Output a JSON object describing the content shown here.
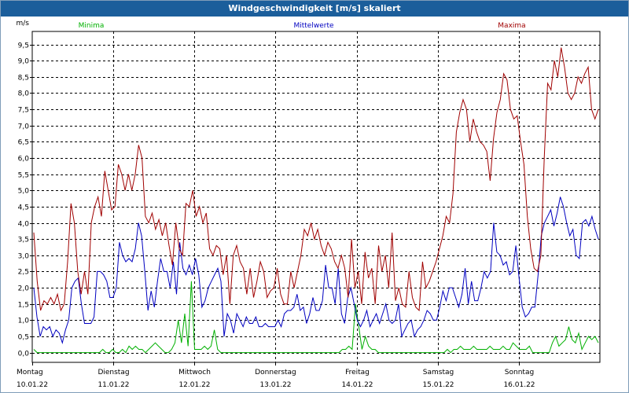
{
  "window": {
    "title": "Windgeschwindigkeit [m/s] skaliert"
  },
  "chart_data": {
    "type": "line",
    "title": "Windgeschwindigkeit [m/s] skaliert",
    "ylabel": "m/s",
    "xlabel": "",
    "ylim": [
      -0.3,
      9.9
    ],
    "xlim": [
      0,
      7
    ],
    "y_ticks": [
      "0,0",
      "0,5",
      "1,0",
      "1,5",
      "2,0",
      "2,5",
      "3,0",
      "3,5",
      "4,0",
      "4,5",
      "5,0",
      "5,5",
      "6,0",
      "6,5",
      "7,0",
      "7,5",
      "8,0",
      "8,5",
      "9,0",
      "9,5"
    ],
    "y_tick_values": [
      0,
      0.5,
      1,
      1.5,
      2,
      2.5,
      3,
      3.5,
      4,
      4.5,
      5,
      5.5,
      6,
      6.5,
      7,
      7.5,
      8,
      8.5,
      9,
      9.5
    ],
    "x_ticks": [
      {
        "day": "Montag",
        "date": "10.01.22"
      },
      {
        "day": "Dienstag",
        "date": "11.01.22"
      },
      {
        "day": "Mittwoch",
        "date": "12.01.22"
      },
      {
        "day": "Donnerstag",
        "date": "13.01.22"
      },
      {
        "day": "Freitag",
        "date": "14.01.22"
      },
      {
        "day": "Samstag",
        "date": "15.01.22"
      },
      {
        "day": "Sonntag",
        "date": "16.01.22"
      }
    ],
    "grid": true,
    "series": [
      {
        "name": "Minima",
        "color": "#00b000",
        "values": [
          0.1,
          0,
          0,
          0,
          0,
          0,
          0,
          0,
          0,
          0,
          0,
          0,
          0,
          0,
          0,
          0,
          0,
          0,
          0,
          0,
          0,
          0.1,
          0,
          0,
          0.1,
          0,
          0,
          0.1,
          0,
          0.2,
          0.1,
          0.2,
          0.1,
          0.1,
          0,
          0.1,
          0.2,
          0.3,
          0.2,
          0.1,
          0,
          0,
          0.1,
          0.3,
          1.0,
          0.3,
          1.2,
          0.2,
          2.2,
          0.1,
          0.1,
          0.1,
          0.2,
          0.1,
          0.2,
          0.7,
          0.1,
          0,
          0,
          0,
          0,
          0,
          0,
          0,
          0,
          0,
          0,
          0,
          0,
          0,
          0,
          0,
          0,
          0,
          0,
          0,
          0,
          0,
          0,
          0,
          0,
          0,
          0,
          0,
          0,
          0,
          0,
          0,
          0,
          0,
          0,
          0,
          0,
          0,
          0.1,
          0.1,
          0.2,
          0.1,
          1.5,
          0.8,
          0.1,
          0.5,
          0.2,
          0.1,
          0.1,
          0,
          0,
          0,
          0,
          0,
          0,
          0,
          0,
          0,
          0,
          0,
          0,
          0,
          0,
          0,
          0,
          0,
          0,
          0,
          0,
          0,
          0.1,
          0,
          0.1,
          0.1,
          0.2,
          0.1,
          0.1,
          0.1,
          0.2,
          0.1,
          0.1,
          0.1,
          0.1,
          0.2,
          0.1,
          0.1,
          0.1,
          0.2,
          0.1,
          0.1,
          0.3,
          0.2,
          0.1,
          0.1,
          0.1,
          0.2,
          0,
          0,
          0,
          0,
          0,
          0,
          0.3,
          0.5,
          0.2,
          0.3,
          0.4,
          0.8,
          0.4,
          0.3,
          0.6,
          0.1,
          0.3,
          0.5,
          0.4,
          0.5,
          0.3
        ]
      },
      {
        "name": "Mittelwerte",
        "color": "#0000c0",
        "values": [
          2.0,
          1.1,
          0.5,
          0.8,
          0.7,
          0.8,
          0.5,
          0.7,
          0.6,
          0.3,
          0.7,
          1.0,
          2.0,
          2.2,
          2.3,
          1.5,
          0.9,
          0.9,
          0.9,
          1.1,
          2.5,
          2.5,
          2.4,
          2.2,
          1.7,
          1.7,
          2.0,
          3.4,
          3.0,
          2.8,
          2.9,
          2.8,
          3.2,
          4.0,
          3.6,
          2.5,
          1.3,
          1.9,
          1.4,
          2.2,
          2.9,
          2.5,
          2.5,
          2.0,
          2.8,
          1.8,
          3.4,
          2.6,
          2.4,
          2.7,
          2.4,
          2.9,
          2.4,
          1.4,
          1.6,
          2.0,
          2.2,
          2.4,
          2.6,
          2.2,
          0.5,
          1.2,
          1.0,
          0.6,
          1.2,
          1.0,
          0.8,
          1.1,
          0.9,
          0.9,
          1.1,
          0.8,
          0.8,
          0.9,
          0.8,
          0.8,
          0.8,
          1.0,
          0.8,
          1.2,
          1.3,
          1.3,
          1.4,
          1.8,
          1.3,
          1.4,
          0.9,
          1.2,
          1.7,
          1.3,
          1.3,
          1.6,
          2.7,
          2.0,
          2.0,
          1.5,
          2.6,
          1.2,
          0.9,
          1.7,
          2.0,
          1.5,
          1.0,
          0.8,
          1.0,
          1.3,
          0.8,
          1.0,
          1.2,
          0.9,
          1.2,
          1.5,
          1.0,
          0.9,
          1.0,
          1.5,
          0.5,
          0.7,
          0.9,
          1.0,
          0.5,
          0.7,
          0.8,
          1.0,
          1.3,
          1.2,
          1.0,
          1.0,
          1.4,
          1.9,
          1.6,
          2.0,
          2.0,
          1.7,
          1.4,
          1.8,
          2.6,
          1.5,
          2.2,
          1.6,
          1.6,
          2.0,
          2.5,
          2.3,
          2.5,
          4.0,
          3.1,
          3.0,
          2.7,
          2.8,
          2.4,
          2.5,
          3.3,
          2.3,
          1.4,
          1.1,
          1.2,
          1.4,
          1.4,
          2.4,
          3.6,
          4.0,
          4.2,
          4.4,
          3.9,
          4.3,
          4.8,
          4.5,
          4.0,
          3.6,
          3.8,
          3.0,
          2.9,
          4.0,
          4.1,
          3.9,
          4.2,
          3.8,
          3.5
        ]
      },
      {
        "name": "Maxima",
        "color": "#a00000",
        "values": [
          3.7,
          2.2,
          1.3,
          1.6,
          1.5,
          1.7,
          1.5,
          1.8,
          1.3,
          1.5,
          2.8,
          4.6,
          4.0,
          2.5,
          1.8,
          2.5,
          1.8,
          4.0,
          4.5,
          4.8,
          4.2,
          5.6,
          5.0,
          4.4,
          4.5,
          5.8,
          5.5,
          5.0,
          5.5,
          5.0,
          5.5,
          6.4,
          6.0,
          4.2,
          4.0,
          4.3,
          3.8,
          4.1,
          3.6,
          4.0,
          3.3,
          2.7,
          4.0,
          3.2,
          3.0,
          4.6,
          4.5,
          5.0,
          4.2,
          4.5,
          4.0,
          4.3,
          3.2,
          3.0,
          3.3,
          3.2,
          2.4,
          3.0,
          1.5,
          3.0,
          3.3,
          2.8,
          2.6,
          1.8,
          2.6,
          1.7,
          2.2,
          2.8,
          2.5,
          1.7,
          1.9,
          2.0,
          2.6,
          1.8,
          1.5,
          1.5,
          2.5,
          2.0,
          2.5,
          3.0,
          3.8,
          3.6,
          4.0,
          3.5,
          3.8,
          3.3,
          3.0,
          3.4,
          3.2,
          2.8,
          2.6,
          3.0,
          2.6,
          1.7,
          3.5,
          2.0,
          2.5,
          1.5,
          3.1,
          2.3,
          2.6,
          1.5,
          3.3,
          2.5,
          3.0,
          2.0,
          3.7,
          1.6,
          2.0,
          1.5,
          1.4,
          2.5,
          1.7,
          1.4,
          1.3,
          2.8,
          2.0,
          2.2,
          2.5,
          2.8,
          3.2,
          3.6,
          4.2,
          4.0,
          4.9,
          6.8,
          7.4,
          7.8,
          7.5,
          6.5,
          7.2,
          6.8,
          6.5,
          6.4,
          6.2,
          5.3,
          6.6,
          7.4,
          7.8,
          8.6,
          8.4,
          7.5,
          7.2,
          7.3,
          6.5,
          5.8,
          4.2,
          3.2,
          2.6,
          2.5,
          3.0,
          6.0,
          8.3,
          8.1,
          9.0,
          8.5,
          9.4,
          8.8,
          8.0,
          7.8,
          8.0,
          8.5,
          8.3,
          8.6,
          8.8,
          7.5,
          7.2,
          7.5
        ]
      }
    ]
  }
}
